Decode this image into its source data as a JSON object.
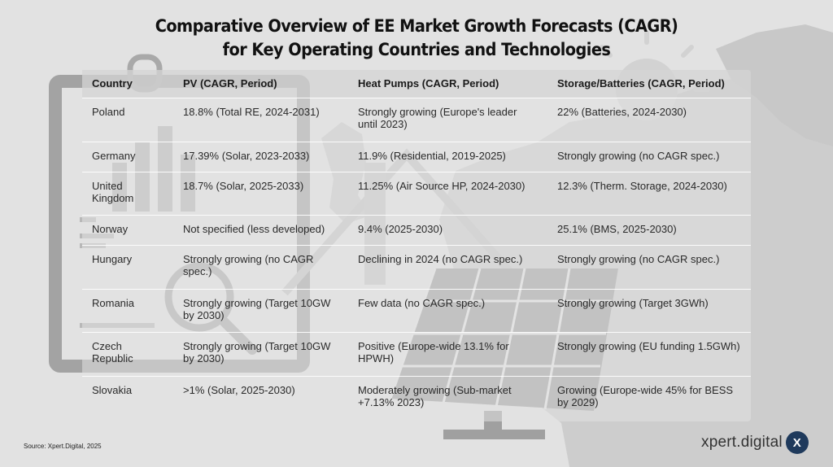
{
  "title": {
    "line1": "Comparative Overview of EE Market Growth Forecasts (CAGR)",
    "line2": "for Key Operating Countries and Technologies"
  },
  "table": {
    "headers": [
      "Country",
      "PV (CAGR, Period)",
      "Heat Pumps (CAGR, Period)",
      "Storage/Batteries (CAGR, Period)"
    ],
    "rows": [
      [
        "Poland",
        "18.8% (Total RE, 2024-2031)",
        "Strongly growing (Europe's leader until 2023)",
        "22% (Batteries, 2024-2030)"
      ],
      [
        "Germany",
        "17.39% (Solar, 2023-2033)",
        "11.9% (Residential, 2019-2025)",
        "Strongly growing (no CAGR spec.)"
      ],
      [
        "United Kingdom",
        "18.7% (Solar, 2025-2033)",
        "11.25% (Air Source HP, 2024-2030)",
        "12.3% (Therm. Storage, 2024-2030)"
      ],
      [
        "Norway",
        "Not specified (less developed)",
        "9.4% (2025-2030)",
        "25.1% (BMS, 2025-2030)"
      ],
      [
        "Hungary",
        "Strongly growing (no CAGR spec.)",
        "Declining in 2024 (no CAGR spec.)",
        "Strongly growing (no CAGR spec.)"
      ],
      [
        "Romania",
        "Strongly growing (Target 10GW by 2030)",
        "Few data (no CAGR spec.)",
        "Strongly growing (Target 3GWh)"
      ],
      [
        "Czech Republic",
        "Strongly growing (Target 10GW by 2030)",
        "Positive (Europe-wide 13.1% for HPWH)",
        "Strongly growing (EU funding 1.5GWh)"
      ],
      [
        "Slovakia",
        ">1% (Solar, 2025-2030)",
        "Moderately growing (Sub-market +7.13% 2023)",
        "Growing (Europe-wide 45% for BESS by 2029)"
      ]
    ]
  },
  "footer": {
    "source": "Source: Xpert.Digital, 2025",
    "brand": "xpert.digital",
    "brand_badge": "X"
  },
  "colors": {
    "background": "#e2e2e2",
    "brand_badge": "#1f3a5c"
  }
}
